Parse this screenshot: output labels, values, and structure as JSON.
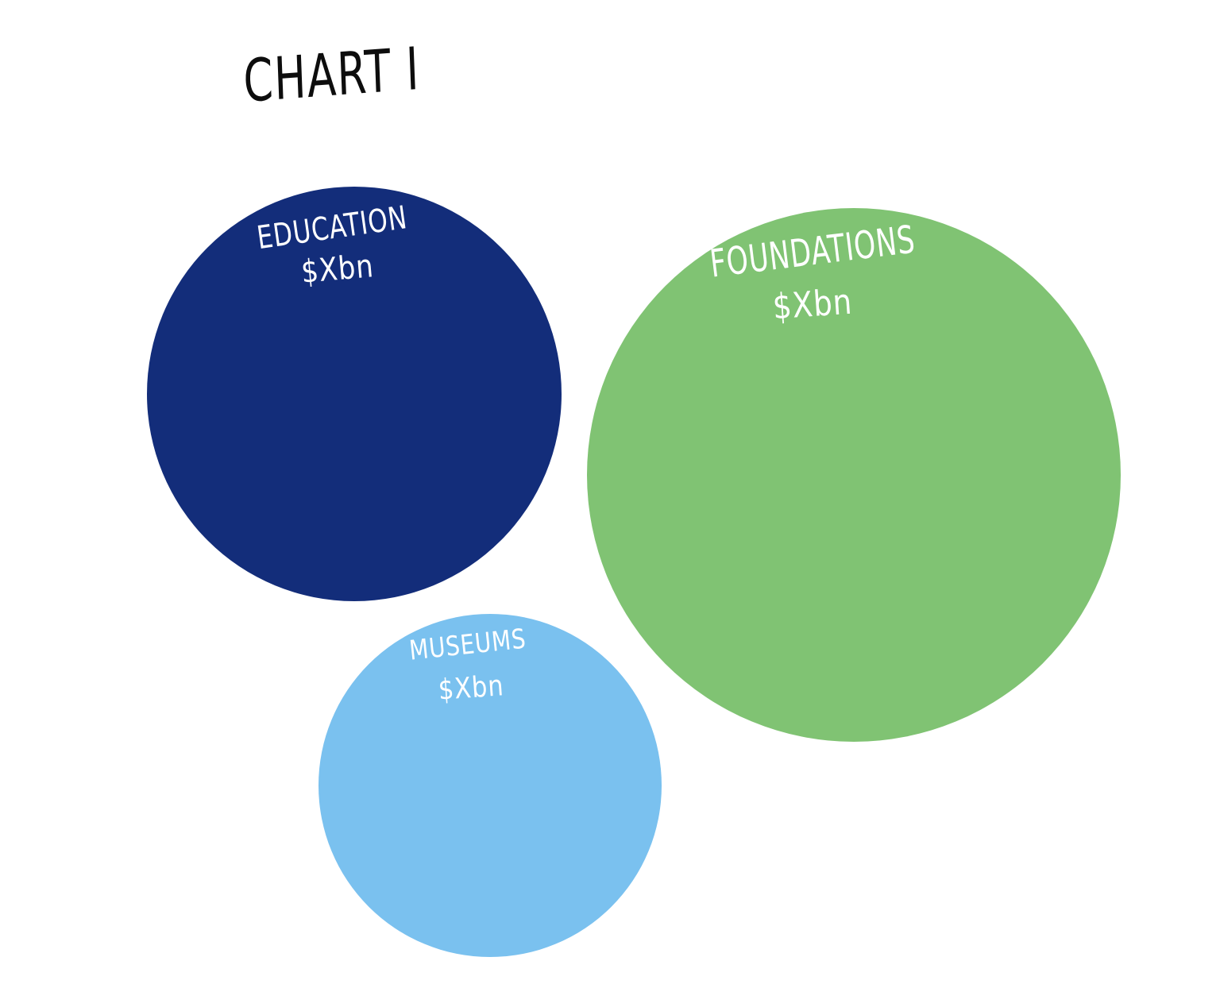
{
  "chart_data": {
    "type": "bubble",
    "title": "CHART I",
    "bubbles": [
      {
        "category": "EDUCATION",
        "value_label": "$Xbn",
        "color": "#132d7a"
      },
      {
        "category": "FOUNDATIONS",
        "value_label": "$Xbn",
        "color": "#80c373"
      },
      {
        "category": "MUSEUMS",
        "value_label": "$Xbn",
        "color": "#7ac1ef"
      }
    ]
  },
  "colors": {
    "background": "#ffffff",
    "label_text": "#ffffff",
    "title_text": "#0d0d0d"
  }
}
